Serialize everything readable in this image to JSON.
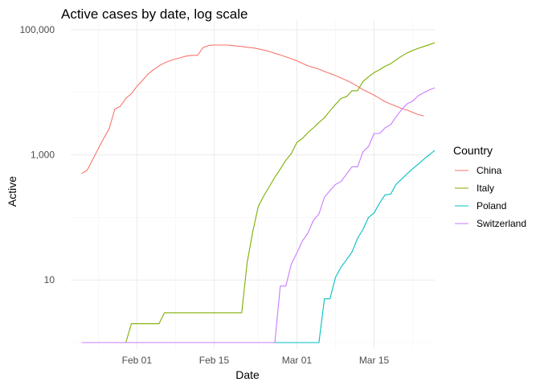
{
  "chart_data": {
    "type": "line",
    "title": "Active cases by date, log scale",
    "xlabel": "Date",
    "ylabel": "Active",
    "x_scale": "date",
    "y_scale": "log10",
    "xlim": [
      "2020-01-20",
      "2020-03-26"
    ],
    "ylim": [
      1,
      100000
    ],
    "x_ticks": [
      {
        "date": "2020-02-01",
        "label": "Feb 01"
      },
      {
        "date": "2020-02-15",
        "label": "Feb 15"
      },
      {
        "date": "2020-03-01",
        "label": "Mar 01"
      },
      {
        "date": "2020-03-15",
        "label": "Mar 15"
      }
    ],
    "y_ticks": [
      {
        "value": 10,
        "label": "10"
      },
      {
        "value": 1000,
        "label": "1,000"
      },
      {
        "value": 100000,
        "label": "100,000"
      }
    ],
    "grid": true,
    "legend": {
      "title": "Country",
      "position": "right"
    },
    "series": [
      {
        "name": "China",
        "color": "#F8766D",
        "points": [
          [
            "2020-01-22",
            503
          ],
          [
            "2020-01-23",
            572
          ],
          [
            "2020-01-24",
            850
          ],
          [
            "2020-01-25",
            1250
          ],
          [
            "2020-01-26",
            1850
          ],
          [
            "2020-01-27",
            2650
          ],
          [
            "2020-01-28",
            5400
          ],
          [
            "2020-01-29",
            6000
          ],
          [
            "2020-01-30",
            8000
          ],
          [
            "2020-01-31",
            9500
          ],
          [
            "2020-02-01",
            12500
          ],
          [
            "2020-02-02",
            15500
          ],
          [
            "2020-02-03",
            19500
          ],
          [
            "2020-02-04",
            23000
          ],
          [
            "2020-02-05",
            26500
          ],
          [
            "2020-02-06",
            29500
          ],
          [
            "2020-02-07",
            32000
          ],
          [
            "2020-02-08",
            34000
          ],
          [
            "2020-02-09",
            36000
          ],
          [
            "2020-02-10",
            38000
          ],
          [
            "2020-02-11",
            39000
          ],
          [
            "2020-02-12",
            39000
          ],
          [
            "2020-02-13",
            52000
          ],
          [
            "2020-02-14",
            56000
          ],
          [
            "2020-02-15",
            57000
          ],
          [
            "2020-02-16",
            57000
          ],
          [
            "2020-02-17",
            57000
          ],
          [
            "2020-02-18",
            56500
          ],
          [
            "2020-02-19",
            55000
          ],
          [
            "2020-02-20",
            54000
          ],
          [
            "2020-02-21",
            52500
          ],
          [
            "2020-02-22",
            51500
          ],
          [
            "2020-02-23",
            49500
          ],
          [
            "2020-02-24",
            47500
          ],
          [
            "2020-02-25",
            45000
          ],
          [
            "2020-02-26",
            42000
          ],
          [
            "2020-02-27",
            39500
          ],
          [
            "2020-02-28",
            37000
          ],
          [
            "2020-02-29",
            34500
          ],
          [
            "2020-03-01",
            32000
          ],
          [
            "2020-03-02",
            29000
          ],
          [
            "2020-03-03",
            26500
          ],
          [
            "2020-03-04",
            25000
          ],
          [
            "2020-03-05",
            23500
          ],
          [
            "2020-03-06",
            21500
          ],
          [
            "2020-03-07",
            20000
          ],
          [
            "2020-03-08",
            18500
          ],
          [
            "2020-03-09",
            17000
          ],
          [
            "2020-03-10",
            15500
          ],
          [
            "2020-03-11",
            14000
          ],
          [
            "2020-03-12",
            12500
          ],
          [
            "2020-03-13",
            11000
          ],
          [
            "2020-03-14",
            10000
          ],
          [
            "2020-03-15",
            9000
          ],
          [
            "2020-03-16",
            8000
          ],
          [
            "2020-03-17",
            7100
          ],
          [
            "2020-03-18",
            6500
          ],
          [
            "2020-03-19",
            6000
          ],
          [
            "2020-03-20",
            5500
          ],
          [
            "2020-03-21",
            5200
          ],
          [
            "2020-03-22",
            4800
          ],
          [
            "2020-03-23",
            4400
          ],
          [
            "2020-03-24",
            4200
          ]
        ]
      },
      {
        "name": "Italy",
        "color": "#7CAE00",
        "points": [
          [
            "2020-01-22",
            0
          ],
          [
            "2020-01-28",
            0
          ],
          [
            "2020-01-29",
            0
          ],
          [
            "2020-01-30",
            0
          ],
          [
            "2020-01-31",
            2
          ],
          [
            "2020-02-05",
            2
          ],
          [
            "2020-02-06",
            3
          ],
          [
            "2020-02-20",
            3
          ],
          [
            "2020-02-21",
            19
          ],
          [
            "2020-02-22",
            59
          ],
          [
            "2020-02-23",
            150
          ],
          [
            "2020-02-24",
            221
          ],
          [
            "2020-02-25",
            311
          ],
          [
            "2020-02-26",
            438
          ],
          [
            "2020-02-27",
            593
          ],
          [
            "2020-02-28",
            821
          ],
          [
            "2020-02-29",
            1049
          ],
          [
            "2020-03-01",
            1577
          ],
          [
            "2020-03-02",
            1835
          ],
          [
            "2020-03-03",
            2263
          ],
          [
            "2020-03-04",
            2706
          ],
          [
            "2020-03-05",
            3296
          ],
          [
            "2020-03-06",
            3916
          ],
          [
            "2020-03-07",
            5061
          ],
          [
            "2020-03-08",
            6387
          ],
          [
            "2020-03-09",
            7985
          ],
          [
            "2020-03-10",
            8514
          ],
          [
            "2020-03-11",
            10590
          ],
          [
            "2020-03-12",
            10590
          ],
          [
            "2020-03-13",
            14955
          ],
          [
            "2020-03-14",
            17750
          ],
          [
            "2020-03-15",
            20603
          ],
          [
            "2020-03-16",
            23073
          ],
          [
            "2020-03-17",
            26062
          ],
          [
            "2020-03-18",
            28710
          ],
          [
            "2020-03-19",
            33190
          ],
          [
            "2020-03-20",
            37860
          ],
          [
            "2020-03-21",
            42681
          ],
          [
            "2020-03-22",
            46638
          ],
          [
            "2020-03-23",
            50418
          ],
          [
            "2020-03-24",
            54030
          ],
          [
            "2020-03-25",
            57521
          ],
          [
            "2020-03-26",
            62013
          ]
        ]
      },
      {
        "name": "Poland",
        "color": "#00BFC4",
        "points": [
          [
            "2020-01-22",
            0
          ],
          [
            "2020-03-03",
            0
          ],
          [
            "2020-03-04",
            1
          ],
          [
            "2020-03-05",
            1
          ],
          [
            "2020-03-06",
            5
          ],
          [
            "2020-03-07",
            5
          ],
          [
            "2020-03-08",
            11
          ],
          [
            "2020-03-09",
            16
          ],
          [
            "2020-03-10",
            21
          ],
          [
            "2020-03-11",
            28
          ],
          [
            "2020-03-12",
            46
          ],
          [
            "2020-03-13",
            65
          ],
          [
            "2020-03-14",
            100
          ],
          [
            "2020-03-15",
            118
          ],
          [
            "2020-03-16",
            170
          ],
          [
            "2020-03-17",
            230
          ],
          [
            "2020-03-18",
            235
          ],
          [
            "2020-03-19",
            340
          ],
          [
            "2020-03-20",
            410
          ],
          [
            "2020-03-21",
            500
          ],
          [
            "2020-03-22",
            600
          ],
          [
            "2020-03-23",
            710
          ],
          [
            "2020-03-24",
            850
          ],
          [
            "2020-03-25",
            1000
          ],
          [
            "2020-03-26",
            1180
          ]
        ]
      },
      {
        "name": "Switzerland",
        "color": "#C77CFF",
        "points": [
          [
            "2020-01-22",
            0
          ],
          [
            "2020-02-24",
            0
          ],
          [
            "2020-02-25",
            1
          ],
          [
            "2020-02-26",
            1
          ],
          [
            "2020-02-27",
            8
          ],
          [
            "2020-02-28",
            8
          ],
          [
            "2020-02-29",
            18
          ],
          [
            "2020-03-01",
            27
          ],
          [
            "2020-03-02",
            42
          ],
          [
            "2020-03-03",
            56
          ],
          [
            "2020-03-04",
            90
          ],
          [
            "2020-03-05",
            114
          ],
          [
            "2020-03-06",
            210
          ],
          [
            "2020-03-07",
            268
          ],
          [
            "2020-03-08",
            337
          ],
          [
            "2020-03-09",
            374
          ],
          [
            "2020-03-10",
            491
          ],
          [
            "2020-03-11",
            645
          ],
          [
            "2020-03-12",
            645
          ],
          [
            "2020-03-13",
            1125
          ],
          [
            "2020-03-14",
            1359
          ],
          [
            "2020-03-15",
            2200
          ],
          [
            "2020-03-16",
            2200
          ],
          [
            "2020-03-17",
            2700
          ],
          [
            "2020-03-18",
            3028
          ],
          [
            "2020-03-19",
            4075
          ],
          [
            "2020-03-20",
            5294
          ],
          [
            "2020-03-21",
            6575
          ],
          [
            "2020-03-22",
            7245
          ],
          [
            "2020-03-23",
            8795
          ],
          [
            "2020-03-24",
            9877
          ],
          [
            "2020-03-25",
            10897
          ],
          [
            "2020-03-26",
            11811
          ]
        ]
      }
    ]
  }
}
